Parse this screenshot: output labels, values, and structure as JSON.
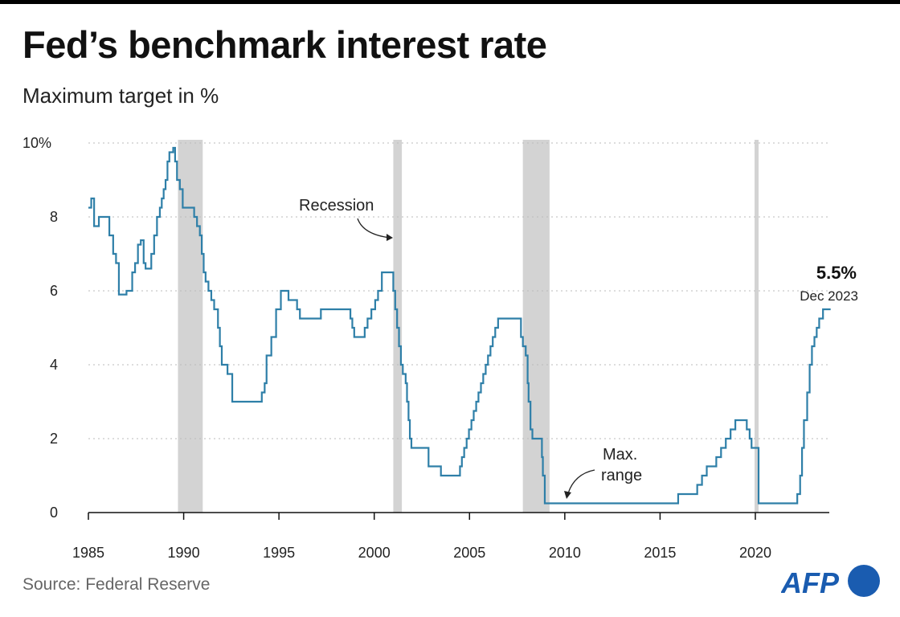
{
  "header": {
    "title": "Fed’s benchmark interest rate",
    "subtitle": "Maximum target in %"
  },
  "footer": {
    "source": "Source: Federal Reserve",
    "logo_text": "AFP"
  },
  "colors": {
    "line": "#2e7fa8",
    "recession": "#d3d3d3",
    "logo": "#1a5cb0"
  },
  "chart_data": {
    "type": "line",
    "title": "Fed’s benchmark interest rate",
    "subtitle": "Maximum target in %",
    "xlim": [
      1985,
      2024
    ],
    "ylim": [
      0,
      10
    ],
    "x_ticks": [
      "1985",
      "1990",
      "1995",
      "2000",
      "2005",
      "2010",
      "2015",
      "2020"
    ],
    "y_ticks": [
      "0",
      "2",
      "4",
      "6",
      "8",
      "10%"
    ],
    "grid": "horizontal dotted",
    "step": true,
    "recessions": [
      [
        1989.7,
        1991.0
      ],
      [
        2001.0,
        2001.45
      ],
      [
        2007.8,
        2009.2
      ],
      [
        2019.96,
        2020.17
      ]
    ],
    "series": [
      {
        "x": [
          1985.0,
          1985.15,
          1985.3,
          1985.55,
          1986.1,
          1986.3,
          1986.45,
          1986.6,
          1987.0,
          1987.3,
          1987.45,
          1987.6,
          1987.75,
          1987.9,
          1988.0,
          1988.3,
          1988.45,
          1988.6,
          1988.75,
          1988.85,
          1988.95,
          1989.05,
          1989.15,
          1989.25,
          1989.45,
          1989.55,
          1989.65,
          1989.8,
          1989.95,
          1990.55,
          1990.7,
          1990.85,
          1990.95,
          1991.05,
          1991.15,
          1991.3,
          1991.45,
          1991.6,
          1991.8,
          1991.9,
          1992.0,
          1992.3,
          1992.55,
          1994.1,
          1994.25,
          1994.35,
          1994.6,
          1994.85,
          1995.1,
          1995.5,
          1995.95,
          1996.1,
          1997.2,
          1998.75,
          1998.85,
          1998.95,
          1999.5,
          1999.65,
          1999.85,
          2000.05,
          2000.2,
          2000.4,
          2001.0,
          2001.1,
          2001.2,
          2001.3,
          2001.4,
          2001.5,
          2001.65,
          2001.72,
          2001.8,
          2001.87,
          2001.95,
          2002.85,
          2003.5,
          2004.5,
          2004.6,
          2004.72,
          2004.85,
          2004.97,
          2005.1,
          2005.22,
          2005.35,
          2005.47,
          2005.6,
          2005.72,
          2005.85,
          2005.97,
          2006.1,
          2006.22,
          2006.35,
          2006.5,
          2007.7,
          2007.8,
          2007.95,
          2008.05,
          2008.1,
          2008.2,
          2008.3,
          2008.8,
          2008.85,
          2008.95,
          2015.95,
          2016.95,
          2017.2,
          2017.45,
          2017.95,
          2018.2,
          2018.45,
          2018.7,
          2018.95,
          2019.55,
          2019.7,
          2019.8,
          2020.17,
          2022.2,
          2022.35,
          2022.45,
          2022.55,
          2022.72,
          2022.85,
          2022.97,
          2023.1,
          2023.22,
          2023.35,
          2023.55,
          2023.95
        ],
        "y": [
          8.25,
          8.5,
          7.75,
          8.0,
          7.5,
          7.0,
          6.75,
          5.9,
          6.0,
          6.5,
          6.75,
          7.25,
          7.37,
          6.75,
          6.6,
          7.0,
          7.5,
          8.0,
          8.25,
          8.5,
          8.75,
          9.0,
          9.5,
          9.75,
          9.87,
          9.5,
          9.0,
          8.75,
          8.25,
          8.0,
          7.75,
          7.5,
          7.0,
          6.5,
          6.25,
          6.0,
          5.75,
          5.5,
          5.0,
          4.5,
          4.0,
          3.75,
          3.0,
          3.25,
          3.5,
          4.25,
          4.75,
          5.5,
          6.0,
          5.75,
          5.5,
          5.25,
          5.5,
          5.25,
          5.0,
          4.75,
          5.0,
          5.25,
          5.5,
          5.75,
          6.0,
          6.5,
          6.0,
          5.5,
          5.0,
          4.5,
          4.0,
          3.75,
          3.5,
          3.0,
          2.5,
          2.0,
          1.75,
          1.25,
          1.0,
          1.25,
          1.5,
          1.75,
          2.0,
          2.25,
          2.5,
          2.75,
          3.0,
          3.25,
          3.5,
          3.75,
          4.0,
          4.25,
          4.5,
          4.75,
          5.0,
          5.25,
          4.75,
          4.5,
          4.25,
          3.5,
          3.0,
          2.25,
          2.0,
          1.5,
          1.0,
          0.25,
          0.5,
          0.75,
          1.0,
          1.25,
          1.5,
          1.75,
          2.0,
          2.25,
          2.5,
          2.25,
          2.0,
          1.75,
          0.25,
          0.5,
          1.0,
          1.75,
          2.5,
          3.25,
          4.0,
          4.5,
          4.75,
          5.0,
          5.25,
          5.5,
          5.5
        ]
      }
    ],
    "annotations": {
      "recession": "Recession",
      "max_range_1": "Max.",
      "max_range_2": "range",
      "last_value": "5.5%",
      "last_date": "Dec 2023"
    }
  }
}
